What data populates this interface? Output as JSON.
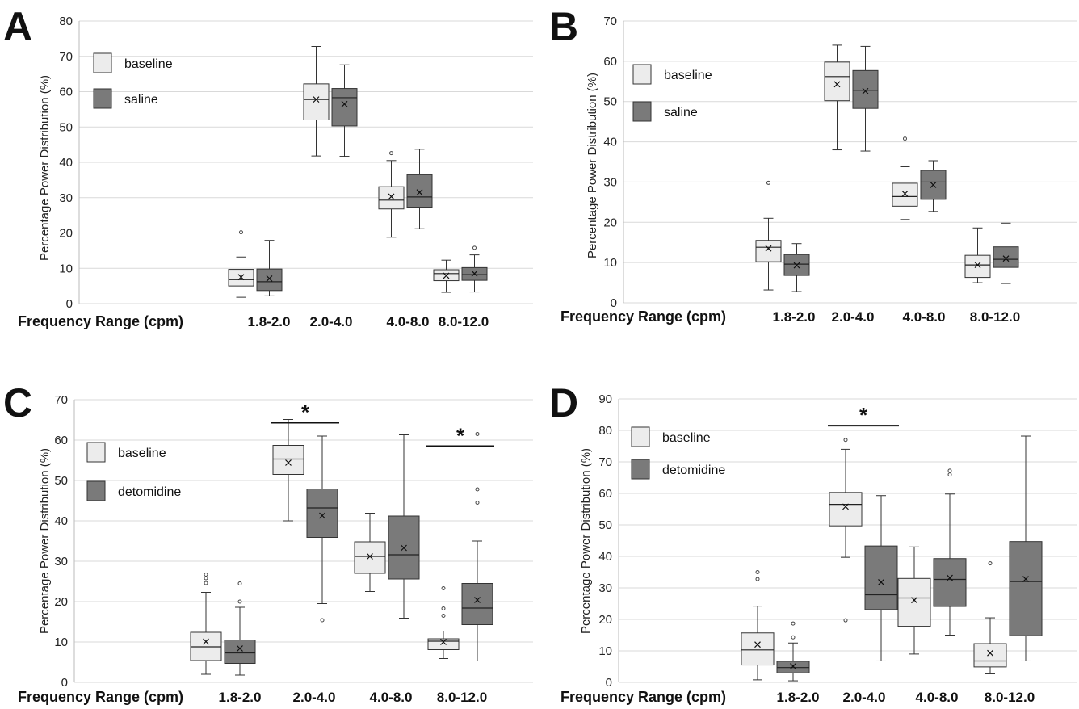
{
  "figure": {
    "panels": [
      {
        "letter": "A"
      },
      {
        "letter": "B"
      },
      {
        "letter": "C"
      },
      {
        "letter": "D"
      }
    ]
  },
  "colors": {
    "baseline_fill": "#ececec",
    "treatment_fill": "#7a7a7a",
    "grid": "#d9d9d9",
    "stroke": "#333333"
  },
  "chart_data": [
    {
      "panel": "A",
      "type": "box",
      "ylabel": "Percentage Power Distribution (%)",
      "xlabel": "Frequency Range (cpm)",
      "ylim": [
        0,
        80
      ],
      "yticks": [
        0,
        10,
        20,
        30,
        40,
        50,
        60,
        70,
        80
      ],
      "grid": true,
      "legend_position": "top-left",
      "categories": [
        "1.8-2.0",
        "2.0-4.0",
        "4.0-8.0",
        "8.0-12.0"
      ],
      "series": [
        {
          "name": "baseline",
          "boxes": [
            {
              "min": 1.8,
              "q1": 5.0,
              "median": 6.8,
              "q3": 9.7,
              "max": 13.2,
              "mean": 7.5,
              "outliers": [
                20.2
              ]
            },
            {
              "min": 41.8,
              "q1": 52.0,
              "median": 57.8,
              "q3": 62.2,
              "max": 72.8,
              "mean": 57.8,
              "outliers": []
            },
            {
              "min": 18.8,
              "q1": 26.8,
              "median": 29.3,
              "q3": 33.1,
              "max": 40.5,
              "mean": 30.3,
              "outliers": [
                42.6
              ]
            },
            {
              "min": 3.2,
              "q1": 6.5,
              "median": 8.5,
              "q3": 9.6,
              "max": 12.3,
              "mean": 7.9,
              "outliers": []
            }
          ]
        },
        {
          "name": "saline",
          "boxes": [
            {
              "min": 2.2,
              "q1": 3.7,
              "median": 6.2,
              "q3": 9.8,
              "max": 17.9,
              "mean": 7.1,
              "outliers": []
            },
            {
              "min": 41.7,
              "q1": 50.3,
              "median": 58.3,
              "q3": 60.9,
              "max": 67.6,
              "mean": 56.5,
              "outliers": []
            },
            {
              "min": 21.2,
              "q1": 27.3,
              "median": 30.2,
              "q3": 36.5,
              "max": 43.7,
              "mean": 31.5,
              "outliers": []
            },
            {
              "min": 3.3,
              "q1": 6.6,
              "median": 8.2,
              "q3": 10.2,
              "max": 13.8,
              "mean": 8.5,
              "outliers": [
                15.8
              ]
            }
          ]
        }
      ]
    },
    {
      "panel": "B",
      "type": "box",
      "ylabel": "Percentage Power Distribution (%)",
      "xlabel": "Frequency Range (cpm)",
      "ylim": [
        0,
        70
      ],
      "yticks": [
        0,
        10,
        20,
        30,
        40,
        50,
        60,
        70
      ],
      "grid": true,
      "legend_position": "top-left",
      "categories": [
        "1.8-2.0",
        "2.0-4.0",
        "4.0-8.0",
        "8.0-12.0"
      ],
      "series": [
        {
          "name": "baseline",
          "boxes": [
            {
              "min": 3.2,
              "q1": 10.2,
              "median": 13.8,
              "q3": 15.5,
              "max": 21.0,
              "mean": 13.5,
              "outliers": [
                29.8
              ]
            },
            {
              "min": 38.0,
              "q1": 50.2,
              "median": 56.2,
              "q3": 59.8,
              "max": 64.0,
              "mean": 54.3,
              "outliers": []
            },
            {
              "min": 20.7,
              "q1": 24.0,
              "median": 26.4,
              "q3": 29.7,
              "max": 33.8,
              "mean": 27.1,
              "outliers": [
                40.8
              ]
            },
            {
              "min": 5.0,
              "q1": 6.3,
              "median": 9.4,
              "q3": 11.8,
              "max": 18.6,
              "mean": 9.4,
              "outliers": []
            }
          ]
        },
        {
          "name": "saline",
          "boxes": [
            {
              "min": 2.8,
              "q1": 6.8,
              "median": 9.6,
              "q3": 12.0,
              "max": 14.7,
              "mean": 9.3,
              "outliers": []
            },
            {
              "min": 37.7,
              "q1": 48.3,
              "median": 52.8,
              "q3": 57.7,
              "max": 63.7,
              "mean": 52.6,
              "outliers": []
            },
            {
              "min": 22.7,
              "q1": 25.7,
              "median": 30.0,
              "q3": 32.9,
              "max": 35.3,
              "mean": 29.3,
              "outliers": []
            },
            {
              "min": 4.8,
              "q1": 8.8,
              "median": 10.8,
              "q3": 13.9,
              "max": 19.8,
              "mean": 11.0,
              "outliers": []
            }
          ]
        }
      ]
    },
    {
      "panel": "C",
      "type": "box",
      "ylabel": "Percentage Power Distribution (%)",
      "xlabel": "Frequency Range (cpm)",
      "ylim": [
        0,
        70
      ],
      "yticks": [
        0,
        10,
        20,
        30,
        40,
        50,
        60,
        70
      ],
      "grid": true,
      "legend_position": "top-left",
      "categories": [
        "1.8-2.0",
        "2.0-4.0",
        "4.0-8.0",
        "8.0-12.0"
      ],
      "series": [
        {
          "name": "baseline",
          "boxes": [
            {
              "min": 2.0,
              "q1": 5.4,
              "median": 8.8,
              "q3": 12.4,
              "max": 22.3,
              "mean": 10.1,
              "outliers": [
                24.6,
                25.8,
                26.7
              ]
            },
            {
              "min": 40.0,
              "q1": 51.5,
              "median": 55.3,
              "q3": 58.7,
              "max": 65.1,
              "mean": 54.4,
              "outliers": []
            },
            {
              "min": 22.5,
              "q1": 27.0,
              "median": 31.2,
              "q3": 34.8,
              "max": 41.9,
              "mean": 31.2,
              "outliers": []
            },
            {
              "min": 5.9,
              "q1": 8.1,
              "median": 10.2,
              "q3": 10.8,
              "max": 12.7,
              "mean": 10.0,
              "outliers": [
                16.5,
                18.3,
                23.3
              ]
            }
          ]
        },
        {
          "name": "detomidine",
          "boxes": [
            {
              "min": 1.8,
              "q1": 4.7,
              "median": 7.3,
              "q3": 10.5,
              "max": 18.6,
              "mean": 8.4,
              "outliers": [
                20.0,
                24.5
              ]
            },
            {
              "min": 19.5,
              "q1": 35.9,
              "median": 43.2,
              "q3": 47.9,
              "max": 61.0,
              "mean": 41.3,
              "outliers": [
                15.4
              ]
            },
            {
              "min": 15.9,
              "q1": 25.6,
              "median": 31.6,
              "q3": 41.2,
              "max": 61.3,
              "mean": 33.3,
              "outliers": []
            },
            {
              "min": 5.3,
              "q1": 14.3,
              "median": 18.4,
              "q3": 24.5,
              "max": 35.0,
              "mean": 20.4,
              "outliers": [
                44.5,
                47.8,
                61.5
              ]
            }
          ]
        }
      ],
      "significance": [
        {
          "label": "*",
          "categories": [
            "2.0-4.0"
          ],
          "y": 64.3
        },
        {
          "label": "*",
          "categories": [
            "8.0-12.0"
          ],
          "y": 58.5
        }
      ]
    },
    {
      "panel": "D",
      "type": "box",
      "ylabel": "Percentage Power Distribution (%)",
      "xlabel": "Frequency Range (cpm)",
      "ylim": [
        0,
        90
      ],
      "yticks": [
        0,
        10,
        20,
        30,
        40,
        50,
        60,
        70,
        80,
        90
      ],
      "grid": true,
      "legend_position": "top-left",
      "categories": [
        "1.8-2.0",
        "2.0-4.0",
        "4.0-8.0",
        "8.0-12.0"
      ],
      "series": [
        {
          "name": "baseline",
          "boxes": [
            {
              "min": 0.8,
              "q1": 5.5,
              "median": 10.3,
              "q3": 15.7,
              "max": 24.2,
              "mean": 12.0,
              "outliers": [
                32.8,
                35.0
              ]
            },
            {
              "min": 39.7,
              "q1": 49.7,
              "median": 56.5,
              "q3": 60.3,
              "max": 74.0,
              "mean": 55.8,
              "outliers": [
                19.7,
                77.0
              ]
            },
            {
              "min": 9.0,
              "q1": 17.8,
              "median": 26.8,
              "q3": 33.0,
              "max": 43.0,
              "mean": 26.1,
              "outliers": []
            },
            {
              "min": 2.7,
              "q1": 4.9,
              "median": 6.8,
              "q3": 12.3,
              "max": 20.5,
              "mean": 9.3,
              "outliers": [
                37.8
              ]
            }
          ]
        },
        {
          "name": "detomidine",
          "boxes": [
            {
              "min": 0.5,
              "q1": 3.0,
              "median": 4.7,
              "q3": 6.7,
              "max": 12.5,
              "mean": 5.1,
              "outliers": [
                14.3,
                18.7
              ]
            },
            {
              "min": 6.8,
              "q1": 23.1,
              "median": 27.8,
              "q3": 43.3,
              "max": 59.3,
              "mean": 31.8,
              "outliers": []
            },
            {
              "min": 15.0,
              "q1": 24.1,
              "median": 32.7,
              "q3": 39.3,
              "max": 59.8,
              "mean": 33.2,
              "outliers": [
                66.0,
                67.2
              ]
            },
            {
              "min": 6.8,
              "q1": 14.8,
              "median": 32.0,
              "q3": 44.7,
              "max": 78.2,
              "mean": 32.8,
              "outliers": []
            }
          ]
        }
      ],
      "significance": [
        {
          "label": "*",
          "categories": [
            "2.0-4.0"
          ],
          "y": 81.5
        }
      ]
    }
  ]
}
